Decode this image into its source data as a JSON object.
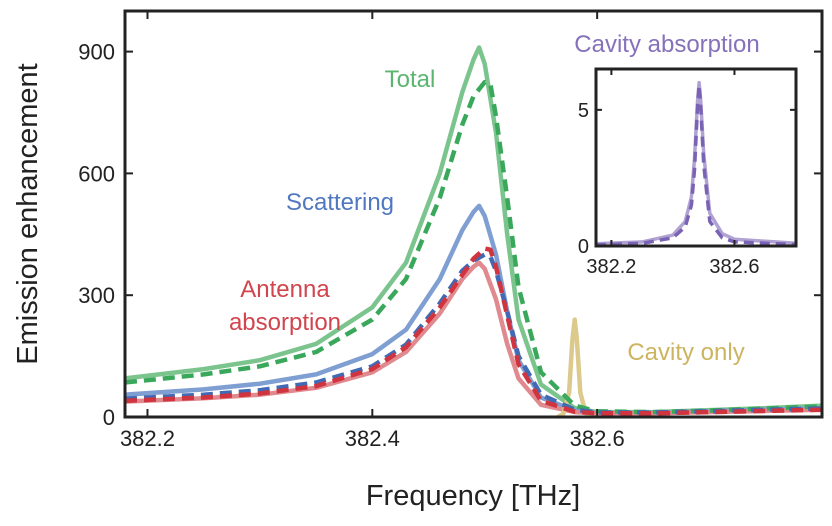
{
  "chart_data": [
    {
      "type": "line",
      "xlabel": "Frequency [THz]",
      "ylabel": "Emission enhancement",
      "xlim": [
        382.18,
        382.8
      ],
      "ylim": [
        0,
        1000
      ],
      "xticks": [
        382.2,
        382.4,
        382.6
      ],
      "xtick_labels": [
        "382.2",
        "382.4",
        "382.6"
      ],
      "yticks": [
        0,
        300,
        600,
        900
      ],
      "ytick_labels": [
        "0",
        "300",
        "600",
        "900"
      ],
      "annotations": {
        "total": "Total",
        "scattering": "Scattering",
        "antenna_1": "Antenna",
        "antenna_2": "absorption",
        "cavity_only": "Cavity only"
      },
      "series": [
        {
          "name": "Total",
          "style": "solid",
          "color": "#7cc48e",
          "x": [
            382.18,
            382.25,
            382.3,
            382.35,
            382.4,
            382.43,
            382.46,
            382.48,
            382.49,
            382.495,
            382.5,
            382.51,
            382.52,
            382.53,
            382.55,
            382.58,
            382.6,
            382.65,
            382.7,
            382.75,
            382.8
          ],
          "y": [
            95,
            118,
            140,
            180,
            270,
            380,
            600,
            800,
            880,
            910,
            870,
            700,
            450,
            240,
            80,
            22,
            12,
            12,
            17,
            22,
            28
          ]
        },
        {
          "name": "Total (model)",
          "style": "dashed",
          "color": "#3aa85a",
          "x": [
            382.18,
            382.25,
            382.3,
            382.35,
            382.4,
            382.43,
            382.46,
            382.48,
            382.49,
            382.5,
            382.505,
            382.51,
            382.52,
            382.53,
            382.55,
            382.58,
            382.6,
            382.65,
            382.7,
            382.75,
            382.8
          ],
          "y": [
            85,
            105,
            125,
            160,
            240,
            340,
            540,
            720,
            790,
            825,
            820,
            740,
            540,
            320,
            110,
            28,
            14,
            12,
            16,
            21,
            26
          ]
        },
        {
          "name": "Scattering",
          "style": "solid",
          "color": "#7f9fd2",
          "x": [
            382.18,
            382.25,
            382.3,
            382.35,
            382.4,
            382.43,
            382.46,
            382.48,
            382.49,
            382.495,
            382.5,
            382.51,
            382.52,
            382.53,
            382.55,
            382.58,
            382.6,
            382.65,
            382.7,
            382.75,
            382.8
          ],
          "y": [
            55,
            68,
            82,
            105,
            155,
            215,
            340,
            460,
            505,
            520,
            495,
            400,
            260,
            140,
            48,
            16,
            10,
            10,
            14,
            18,
            22
          ]
        },
        {
          "name": "Scattering (model)",
          "style": "dashed",
          "color": "#4169b4",
          "x": [
            382.18,
            382.25,
            382.3,
            382.35,
            382.4,
            382.43,
            382.46,
            382.48,
            382.49,
            382.5,
            382.505,
            382.51,
            382.52,
            382.53,
            382.55,
            382.58,
            382.6,
            382.65,
            382.7,
            382.75,
            382.8
          ],
          "y": [
            45,
            55,
            66,
            85,
            125,
            178,
            280,
            360,
            385,
            400,
            395,
            360,
            260,
            150,
            55,
            18,
            11,
            11,
            14,
            18,
            21
          ]
        },
        {
          "name": "Antenna absorption",
          "style": "solid",
          "color": "#e08a8f",
          "x": [
            382.18,
            382.25,
            382.3,
            382.35,
            382.4,
            382.43,
            382.46,
            382.48,
            382.49,
            382.495,
            382.5,
            382.51,
            382.52,
            382.53,
            382.55,
            382.58,
            382.6,
            382.65,
            382.7,
            382.75,
            382.8
          ],
          "y": [
            38,
            46,
            55,
            72,
            110,
            160,
            255,
            340,
            370,
            380,
            365,
            290,
            180,
            95,
            30,
            12,
            9,
            9,
            12,
            15,
            18
          ]
        },
        {
          "name": "Antenna absorption (model)",
          "style": "dashed",
          "color": "#d0343e",
          "x": [
            382.18,
            382.25,
            382.3,
            382.35,
            382.4,
            382.43,
            382.46,
            382.48,
            382.49,
            382.5,
            382.505,
            382.51,
            382.52,
            382.53,
            382.55,
            382.58,
            382.6,
            382.65,
            382.7,
            382.75,
            382.8
          ],
          "y": [
            40,
            48,
            58,
            76,
            118,
            172,
            270,
            350,
            390,
            415,
            412,
            370,
            250,
            130,
            40,
            13,
            9,
            9,
            12,
            15,
            18
          ]
        },
        {
          "name": "Cavity only",
          "style": "solid",
          "color": "#dcc98c",
          "x": [
            382.565,
            382.57,
            382.575,
            382.578,
            382.58,
            382.582,
            382.585,
            382.59,
            382.595
          ],
          "y": [
            0,
            8,
            60,
            190,
            240,
            190,
            60,
            8,
            0
          ]
        }
      ]
    },
    {
      "type": "line",
      "title": "Cavity absorption",
      "xlim": [
        382.15,
        382.8
      ],
      "ylim": [
        0,
        6.5
      ],
      "xticks": [
        382.2,
        382.6
      ],
      "xtick_labels": [
        "382.2",
        "382.6"
      ],
      "yticks": [
        0,
        5
      ],
      "ytick_labels": [
        "0",
        "5"
      ],
      "series": [
        {
          "name": "Cavity absorption",
          "style": "solid",
          "color": "#b0a2d2",
          "x": [
            382.15,
            382.3,
            382.4,
            382.44,
            382.46,
            382.47,
            382.48,
            382.485,
            382.49,
            382.5,
            382.52,
            382.56,
            382.6,
            382.8
          ],
          "y": [
            0.08,
            0.15,
            0.4,
            0.9,
            1.8,
            3.2,
            5.3,
            6.0,
            5.4,
            3.4,
            1.2,
            0.45,
            0.25,
            0.1
          ]
        },
        {
          "name": "Cavity absorption (model)",
          "style": "dashed",
          "color": "#7a63b4",
          "x": [
            382.15,
            382.3,
            382.4,
            382.44,
            382.46,
            382.47,
            382.48,
            382.485,
            382.49,
            382.5,
            382.52,
            382.56,
            382.6,
            382.8
          ],
          "y": [
            0.04,
            0.1,
            0.3,
            0.7,
            1.5,
            2.8,
            5.1,
            5.9,
            5.2,
            3.0,
            0.9,
            0.3,
            0.15,
            0.05
          ]
        }
      ]
    }
  ]
}
